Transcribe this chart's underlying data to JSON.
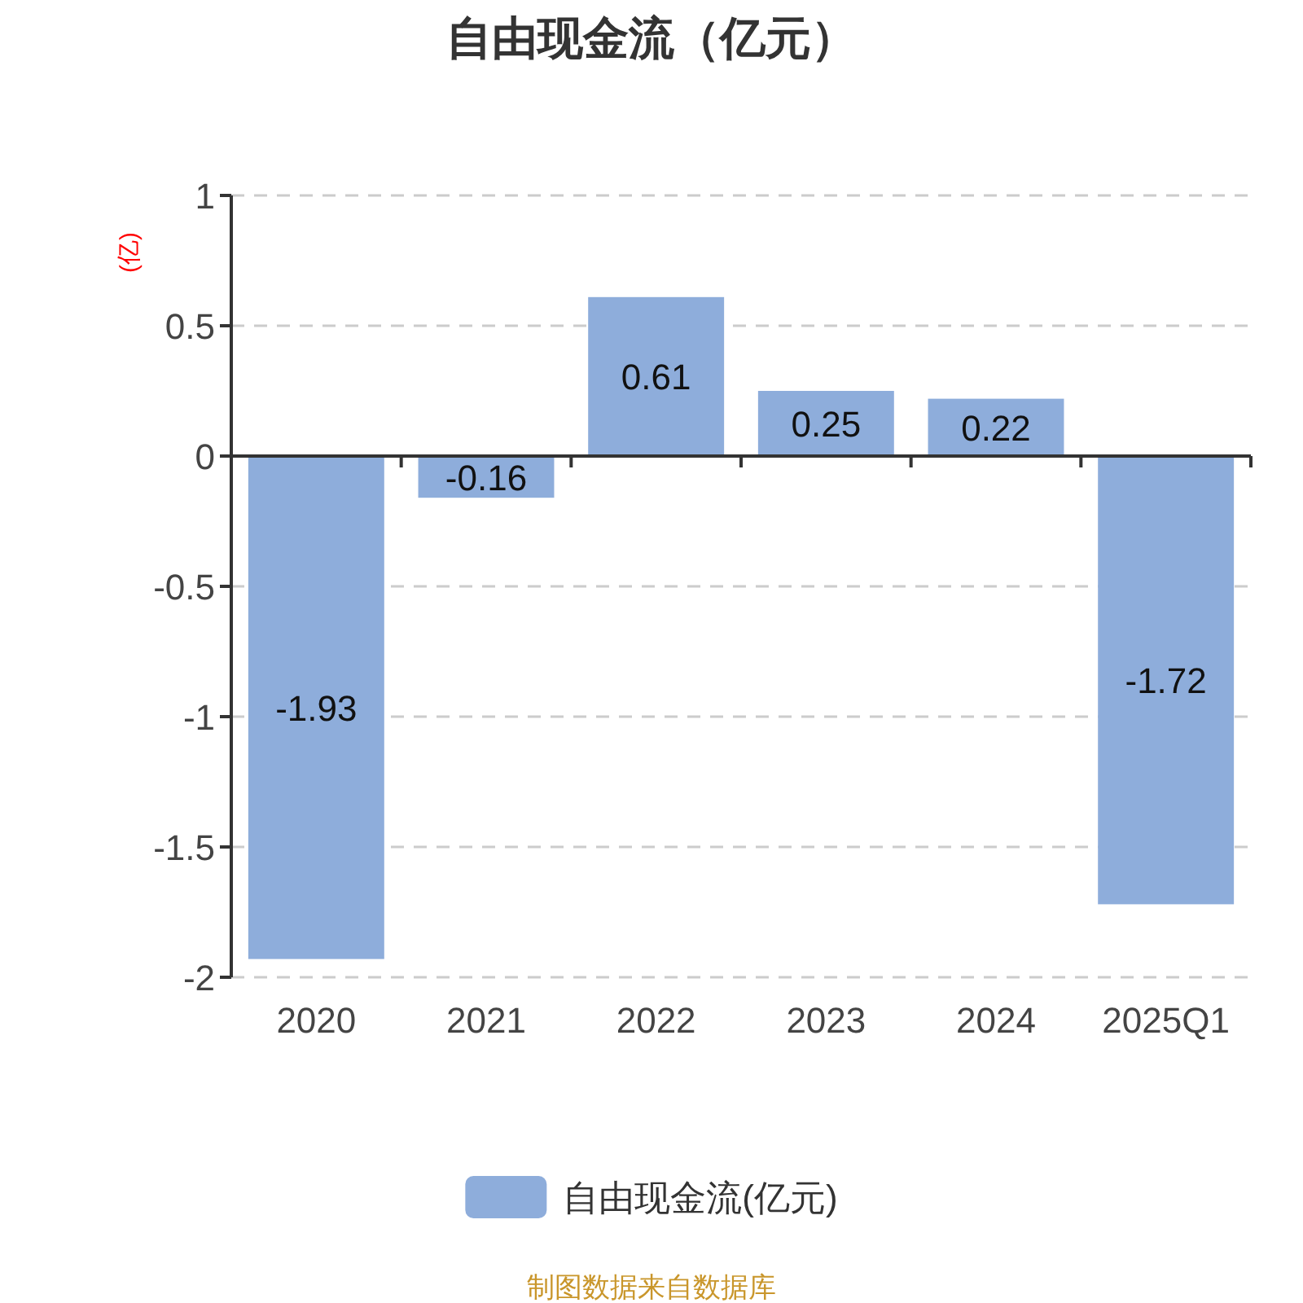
{
  "chart_data": {
    "type": "bar",
    "title": "自由现金流（亿元）",
    "ylabel": "(亿)",
    "categories": [
      "2020",
      "2021",
      "2022",
      "2023",
      "2024",
      "2025Q1"
    ],
    "series": [
      {
        "name": "自由现金流(亿元)",
        "color": "#8eaddb",
        "values": [
          -1.93,
          -0.16,
          0.61,
          0.25,
          0.22,
          -1.72
        ]
      }
    ],
    "ylim": [
      -2,
      1
    ],
    "yticks": [
      -2,
      -1.5,
      -1,
      -0.5,
      0,
      0.5,
      1
    ],
    "grid": "y",
    "legend": "bottom",
    "data_labels": true,
    "annotations": [
      "制图数据来自数据库"
    ]
  }
}
